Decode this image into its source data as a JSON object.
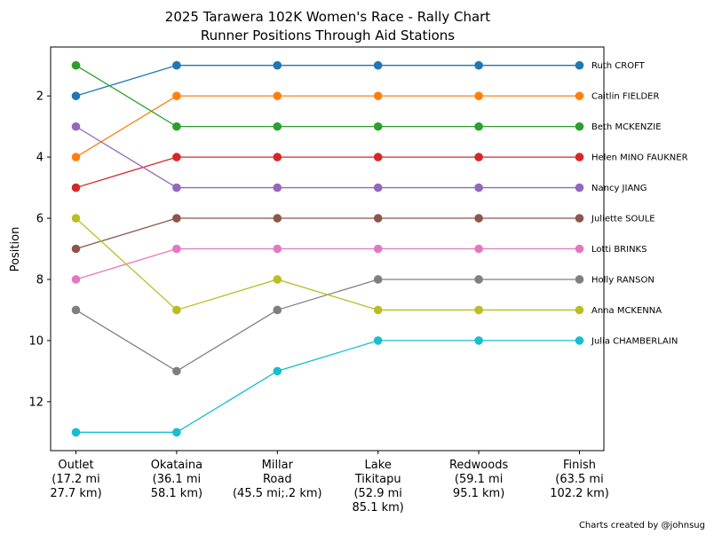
{
  "chart_data": {
    "type": "line",
    "title": "2025 Tarawera 102K Women's Race - Rally Chart",
    "subtitle": "Runner Positions Through Aid Stations",
    "xlabel": "",
    "ylabel": "Position",
    "ylim": [
      13.6,
      0.4
    ],
    "y_inverted": true,
    "yticks": [
      2,
      4,
      6,
      8,
      10,
      12
    ],
    "grid": false,
    "legend": "direct labels at right end of lines",
    "categories": [
      [
        "Outlet",
        "(17.2 mi",
        "27.7 km)"
      ],
      [
        "Okataina",
        "(36.1 mi",
        "58.1 km)"
      ],
      [
        "Millar",
        "Road",
        "(45.5 mi;.2 km)"
      ],
      [
        "Lake",
        "Tikitapu",
        "(52.9 mi",
        "85.1 km)"
      ],
      [
        "Redwoods",
        "(59.1 mi",
        "95.1 km)"
      ],
      [
        "Finish",
        "(63.5 mi",
        "102.2 km)"
      ]
    ],
    "series": [
      {
        "name": "Ruth CROFT",
        "color": "#1f77b4",
        "values": [
          2,
          1,
          1,
          1,
          1,
          1
        ]
      },
      {
        "name": "Caitlin FIELDER",
        "color": "#ff7f0e",
        "values": [
          4,
          2,
          2,
          2,
          2,
          2
        ]
      },
      {
        "name": "Beth MCKENZIE",
        "color": "#2ca02c",
        "values": [
          1,
          3,
          3,
          3,
          3,
          3
        ]
      },
      {
        "name": "Helen MINO FAUKNER",
        "color": "#d62728",
        "values": [
          5,
          4,
          4,
          4,
          4,
          4
        ]
      },
      {
        "name": "Nancy JIANG",
        "color": "#9467bd",
        "values": [
          3,
          5,
          5,
          5,
          5,
          5
        ]
      },
      {
        "name": "Juliette SOULE",
        "color": "#8c564b",
        "values": [
          7,
          6,
          6,
          6,
          6,
          6
        ]
      },
      {
        "name": "Lotti BRINKS",
        "color": "#e377c2",
        "values": [
          8,
          7,
          7,
          7,
          7,
          7
        ]
      },
      {
        "name": "Holly RANSON",
        "color": "#7f7f7f",
        "values": [
          9,
          11,
          9,
          8,
          8,
          8
        ]
      },
      {
        "name": "Anna MCKENNA",
        "color": "#bcbd22",
        "values": [
          6,
          9,
          8,
          9,
          9,
          9
        ]
      },
      {
        "name": "Julia CHAMBERLAIN",
        "color": "#17becf",
        "values": [
          13,
          13,
          11,
          10,
          10,
          10
        ]
      }
    ],
    "credit": "Charts created by @johnsug"
  }
}
